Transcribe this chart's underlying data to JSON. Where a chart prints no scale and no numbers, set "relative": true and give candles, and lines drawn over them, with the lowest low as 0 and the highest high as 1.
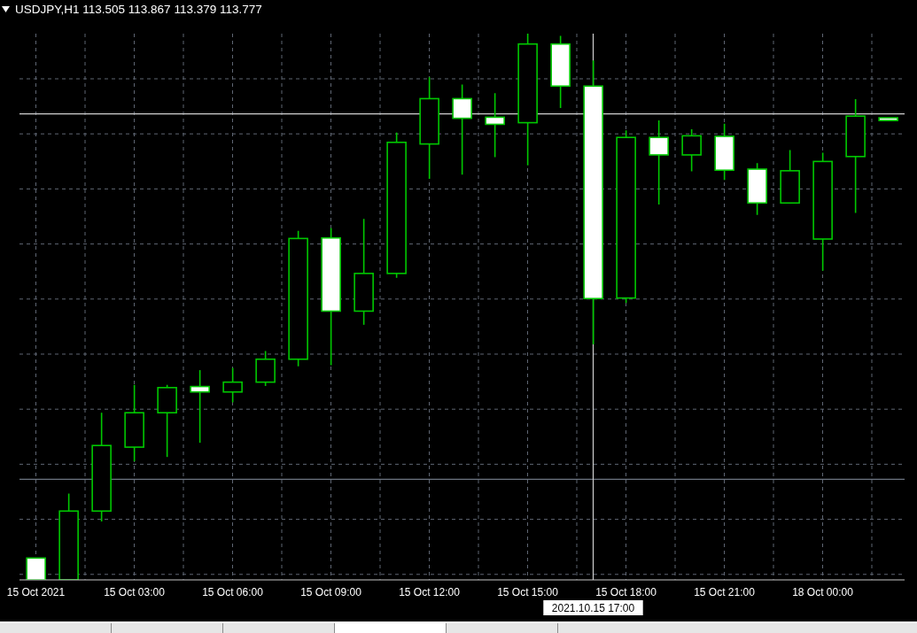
{
  "chart_data": {
    "type": "candlestick",
    "title": "USDJPY,H1 113.505 113.867 113.379 113.777",
    "categories": [
      "15 Oct 2021",
      null,
      null,
      "15 Oct 03:00",
      null,
      null,
      "15 Oct 06:00",
      null,
      null,
      "15 Oct 09:00",
      null,
      null,
      "15 Oct 12:00",
      null,
      null,
      "15 Oct 15:00",
      null,
      "2021.10.15 17:00",
      "15 Oct 18:00",
      null,
      null,
      "15 Oct 21:00",
      null,
      null,
      "18 Oct 00:00",
      null,
      null
    ],
    "ohlc": [
      [
        0.04,
        0.04,
        0,
        0
      ],
      [
        0,
        0.158,
        0,
        0.126
      ],
      [
        0.126,
        0.306,
        0.107,
        0.246
      ],
      [
        0.243,
        0.357,
        0.217,
        0.306
      ],
      [
        0.306,
        0.357,
        0.225,
        0.352
      ],
      [
        0.354,
        0.384,
        0.251,
        0.344
      ],
      [
        0.344,
        0.388,
        0.325,
        0.362
      ],
      [
        0.362,
        0.419,
        0.355,
        0.404
      ],
      [
        0.404,
        0.639,
        0.391,
        0.625
      ],
      [
        0.626,
        0.644,
        0.393,
        0.492
      ],
      [
        0.492,
        0.661,
        0.467,
        0.561
      ],
      [
        0.561,
        0.819,
        0.553,
        0.801
      ],
      [
        0.798,
        0.92,
        0.734,
        0.881
      ],
      [
        0.881,
        0.907,
        0.742,
        0.845
      ],
      [
        0.847,
        0.891,
        0.774,
        0.834
      ],
      [
        0.837,
        1,
        0.759,
        0.981
      ],
      [
        0.981,
        0.996,
        0.864,
        0.904
      ],
      [
        0.904,
        0.951,
        0.431,
        0.515
      ],
      [
        0.516,
        0.823,
        0.507,
        0.81
      ],
      [
        0.81,
        0.841,
        0.687,
        0.778
      ],
      [
        0.778,
        0.825,
        0.748,
        0.813
      ],
      [
        0.812,
        0.835,
        0.732,
        0.75
      ],
      [
        0.752,
        0.763,
        0.668,
        0.69
      ],
      [
        0.69,
        0.787,
        0.69,
        0.749
      ],
      [
        0.624,
        0.782,
        0.566,
        0.766
      ],
      [
        0.775,
        0.88,
        0.672,
        0.849
      ],
      [
        0.846,
        0.846,
        0.841,
        0.841
      ]
    ],
    "color": "#00c800",
    "colors": [
      "#ffffff",
      "#000000",
      "#000000",
      "#000000",
      "#000000",
      "#ffffff",
      "#000000",
      "#000000",
      "#000000",
      "#ffffff",
      "#000000",
      "#000000",
      "#000000",
      "#ffffff",
      "#ffffff",
      "#000000",
      "#ffffff",
      "#ffffff",
      "#000000",
      "#ffffff",
      "#000000",
      "#ffffff",
      "#ffffff",
      "#000000",
      "#000000",
      "#000000",
      "#ffffff"
    ],
    "relative": true,
    "grid": true,
    "ref_lines": [
      {
        "axis": "y",
        "value": 0.853,
        "color": "#d0d0d0"
      },
      {
        "axis": "y",
        "value": 0.184,
        "color": "#6d7481"
      },
      {
        "axis": "x",
        "value": "2021.10.15 17:00",
        "color": "#d0d0d0"
      }
    ]
  }
}
